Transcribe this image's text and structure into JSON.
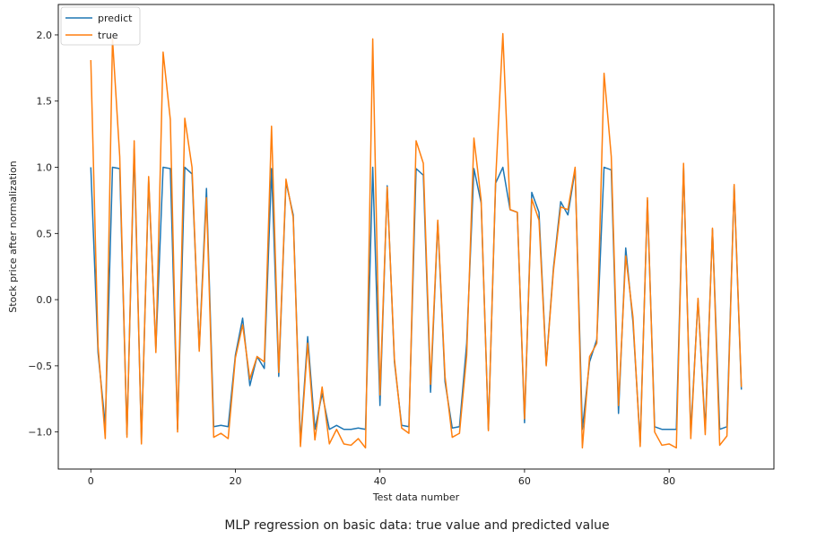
{
  "chart_data": {
    "type": "line",
    "title": "",
    "caption": "MLP regression on basic data: true value and predicted value",
    "xlabel": "Test data number",
    "ylabel": "Stock price after normalization",
    "xlim": [
      -4.5,
      94.5
    ],
    "ylim": [
      -1.28,
      2.23
    ],
    "xticks": [
      0,
      20,
      40,
      60,
      80
    ],
    "yticks": [
      -1.0,
      -0.5,
      0.0,
      0.5,
      1.0,
      1.5,
      2.0
    ],
    "ytick_labels": [
      "−1.0",
      "−0.5",
      "0.0",
      "0.5",
      "1.0",
      "1.5",
      "2.0"
    ],
    "legend_position": "upper-left",
    "colors": {
      "predict": "#1f77b4",
      "true": "#ff7f0e"
    },
    "series": [
      {
        "name": "predict",
        "values": [
          1.0,
          -0.4,
          -0.95,
          1.0,
          0.99,
          -1.02,
          1.14,
          -1.06,
          0.9,
          -0.37,
          1.0,
          0.99,
          -0.98,
          1.0,
          0.95,
          -0.37,
          0.84,
          -0.96,
          -0.95,
          -0.96,
          -0.42,
          -0.14,
          -0.65,
          -0.43,
          -0.52,
          0.99,
          -0.58,
          0.89,
          0.64,
          -1.08,
          -0.28,
          -0.98,
          -0.71,
          -0.98,
          -0.95,
          -0.98,
          -0.98,
          -0.97,
          -0.98,
          1.0,
          -0.8,
          0.86,
          -0.47,
          -0.95,
          -0.96,
          0.99,
          0.94,
          -0.7,
          0.59,
          -0.62,
          -0.97,
          -0.96,
          -0.33,
          0.99,
          0.73,
          -0.98,
          0.88,
          1.0,
          0.68,
          0.66,
          -0.93,
          0.81,
          0.66,
          -0.49,
          0.24,
          0.74,
          0.64,
          0.98,
          -0.98,
          -0.47,
          -0.3,
          1.0,
          0.98,
          -0.86,
          0.39,
          -0.17,
          -1.08,
          0.75,
          -0.96,
          -0.98,
          -0.98,
          -0.98,
          1.0,
          -1.01,
          0.0,
          -0.98,
          0.53,
          -0.98,
          -0.96,
          0.86,
          -0.68
        ]
      },
      {
        "name": "true",
        "values": [
          1.81,
          -0.35,
          -1.05,
          1.97,
          1.08,
          -1.04,
          1.2,
          -1.09,
          0.93,
          -0.4,
          1.87,
          1.36,
          -1.0,
          1.37,
          1.0,
          -0.39,
          0.77,
          -1.04,
          -1.01,
          -1.05,
          -0.44,
          -0.19,
          -0.6,
          -0.43,
          -0.47,
          1.31,
          -0.55,
          0.91,
          0.62,
          -1.11,
          -0.33,
          -1.06,
          -0.66,
          -1.09,
          -0.98,
          -1.09,
          -1.1,
          -1.05,
          -1.12,
          1.97,
          -0.72,
          0.85,
          -0.45,
          -0.97,
          -1.01,
          1.2,
          1.03,
          -0.64,
          0.6,
          -0.58,
          -1.04,
          -1.01,
          -0.42,
          1.22,
          0.75,
          -0.99,
          0.9,
          2.01,
          0.68,
          0.66,
          -0.9,
          0.76,
          0.6,
          -0.5,
          0.22,
          0.7,
          0.68,
          1.0,
          -1.12,
          -0.43,
          -0.33,
          1.71,
          1.08,
          -0.8,
          0.33,
          -0.13,
          -1.11,
          0.77,
          -1.0,
          -1.1,
          -1.09,
          -1.12,
          1.03,
          -1.05,
          0.01,
          -1.02,
          0.54,
          -1.1,
          -1.03,
          0.87,
          -0.66
        ]
      }
    ]
  }
}
